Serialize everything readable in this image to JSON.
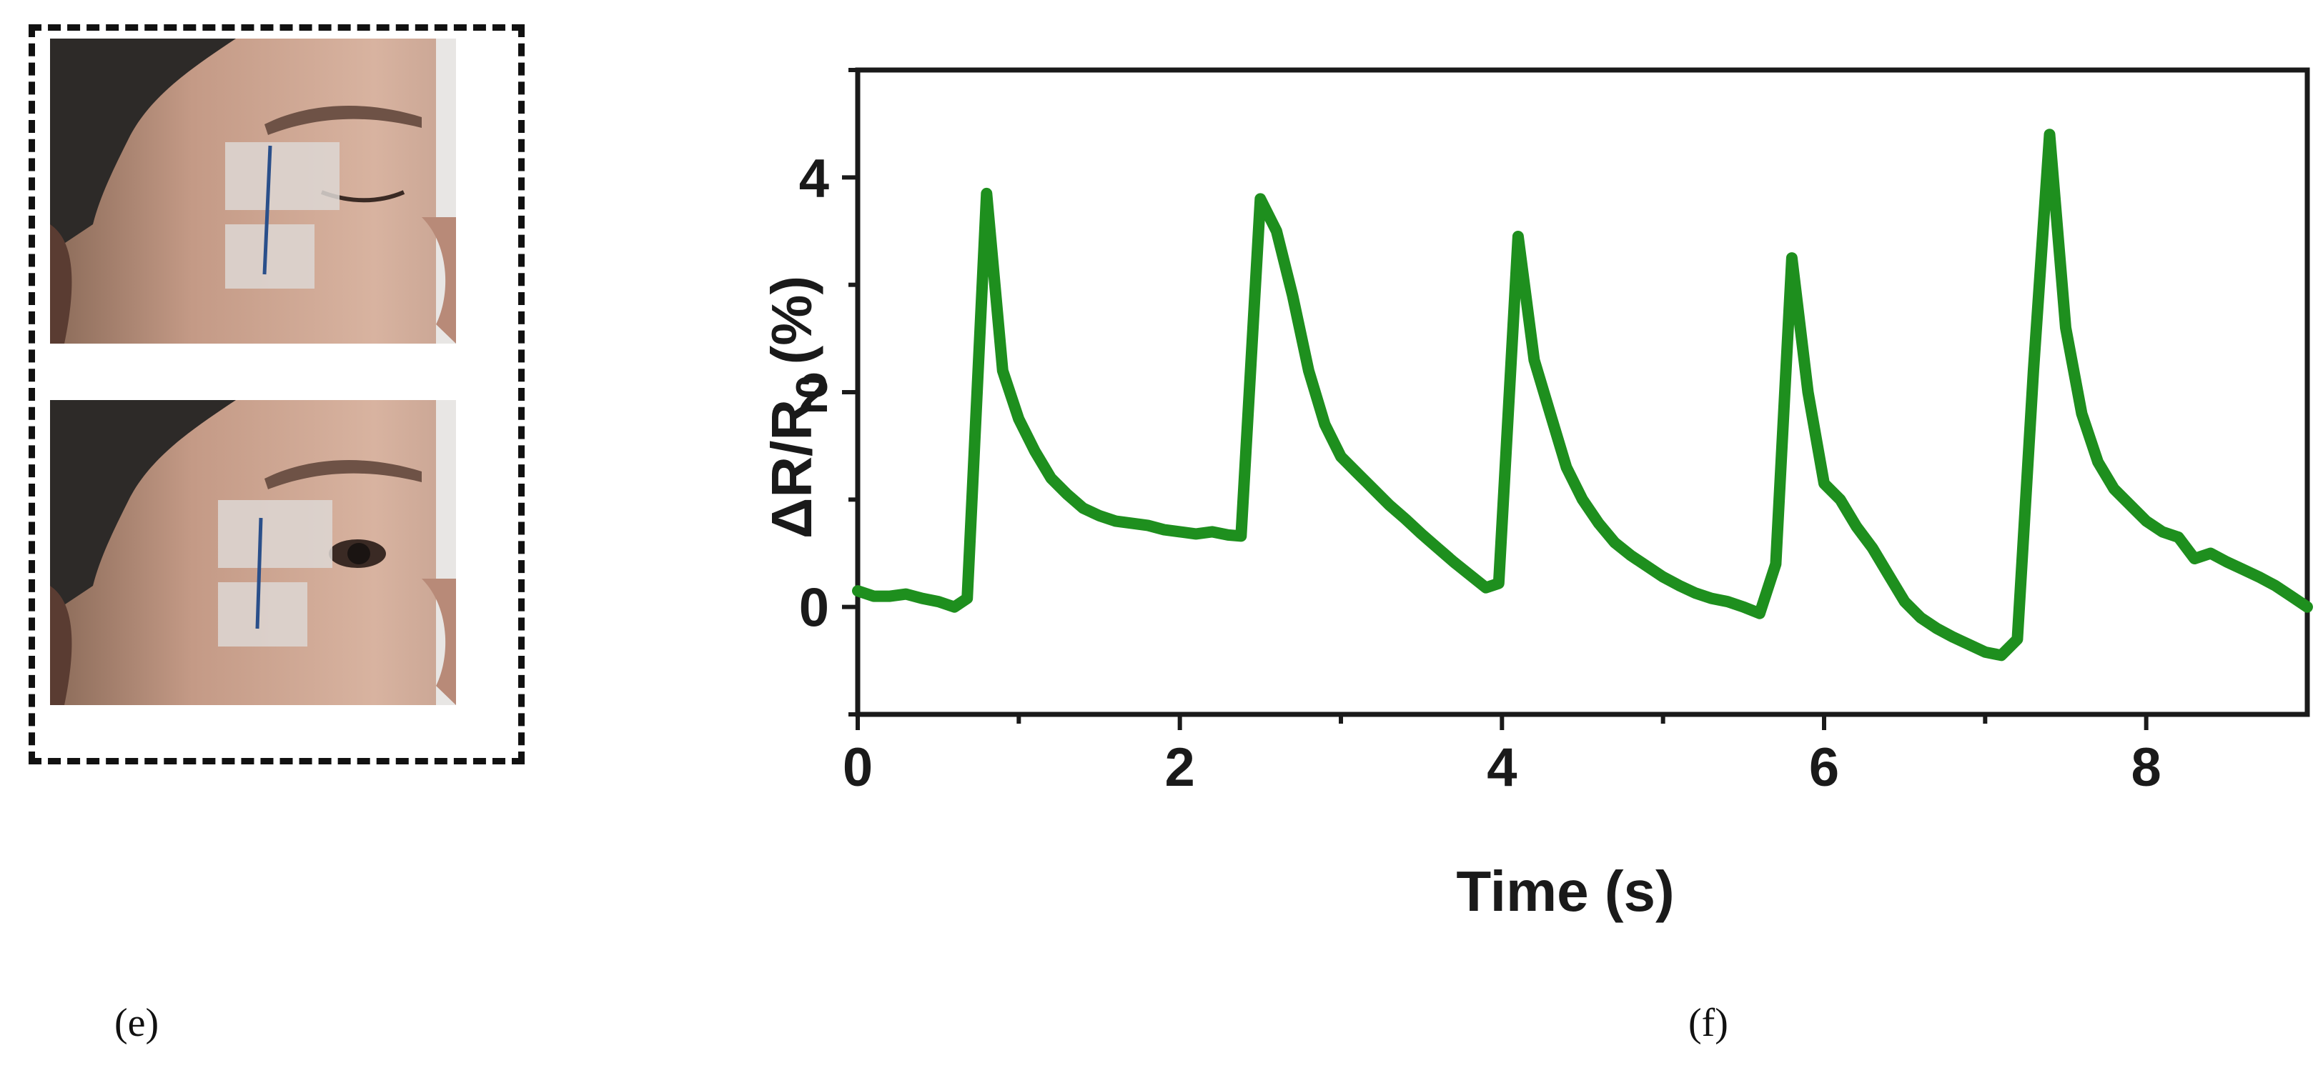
{
  "panels": {
    "left_label": "(e)",
    "right_label": "(f)"
  },
  "photos": [
    {
      "state": "eye-closed"
    },
    {
      "state": "eye-open"
    }
  ],
  "chart_data": {
    "type": "line",
    "title": "",
    "xlabel": "Time (s)",
    "ylabel": "ΔR/R0 (%)",
    "ylabel_main": "ΔR/R",
    "ylabel_sub": "0",
    "ylabel_unit": "(%)",
    "xlim": [
      0,
      9
    ],
    "ylim": [
      -1,
      5
    ],
    "xticks": [
      0,
      2,
      4,
      6,
      8
    ],
    "yticks": [
      0,
      2,
      4
    ],
    "xticks_minor": [
      1,
      3,
      5,
      7
    ],
    "yticks_minor": [
      -1,
      1,
      3,
      5
    ],
    "grid": false,
    "color": "#1e8f1e",
    "series": [
      {
        "x": [
          0,
          0.1,
          0.2,
          0.3,
          0.4,
          0.5,
          0.6,
          0.68,
          0.8,
          0.9,
          1.0,
          1.1,
          1.2,
          1.3,
          1.4,
          1.5,
          1.6,
          1.7,
          1.8,
          1.9,
          2.0,
          2.1,
          2.2,
          2.3,
          2.38,
          2.5,
          2.6,
          2.7,
          2.8,
          2.9,
          3.0,
          3.1,
          3.2,
          3.3,
          3.4,
          3.5,
          3.6,
          3.7,
          3.8,
          3.9,
          3.98,
          4.1,
          4.2,
          4.3,
          4.4,
          4.5,
          4.6,
          4.7,
          4.8,
          4.9,
          5.0,
          5.1,
          5.2,
          5.3,
          5.4,
          5.5,
          5.6,
          5.7,
          5.8,
          5.9,
          6.0,
          6.1,
          6.2,
          6.3,
          6.4,
          6.5,
          6.6,
          6.7,
          6.8,
          6.9,
          7.0,
          7.1,
          7.2,
          7.3,
          7.4,
          7.5,
          7.6,
          7.7,
          7.8,
          7.9,
          8.0,
          8.1,
          8.2,
          8.3,
          8.4,
          8.5,
          8.6,
          8.7,
          8.8,
          8.9,
          9.0
        ],
        "y": [
          0.15,
          0.1,
          0.1,
          0.12,
          0.08,
          0.05,
          0.0,
          0.08,
          3.85,
          2.2,
          1.75,
          1.45,
          1.2,
          1.05,
          0.92,
          0.85,
          0.8,
          0.78,
          0.76,
          0.72,
          0.7,
          0.68,
          0.7,
          0.67,
          0.66,
          3.8,
          3.5,
          2.9,
          2.2,
          1.7,
          1.4,
          1.25,
          1.1,
          0.95,
          0.82,
          0.68,
          0.55,
          0.42,
          0.3,
          0.18,
          0.22,
          3.45,
          2.3,
          1.8,
          1.3,
          1.0,
          0.78,
          0.6,
          0.48,
          0.38,
          0.28,
          0.2,
          0.13,
          0.08,
          0.05,
          0.0,
          -0.06,
          0.4,
          3.25,
          2.0,
          1.15,
          1.0,
          0.75,
          0.55,
          0.3,
          0.05,
          -0.1,
          -0.2,
          -0.28,
          -0.35,
          -0.42,
          -0.45,
          -0.3,
          2.2,
          4.4,
          2.6,
          1.8,
          1.35,
          1.1,
          0.95,
          0.8,
          0.7,
          0.65,
          0.45,
          0.5,
          0.42,
          0.35,
          0.28,
          0.2,
          0.1,
          0.0
        ]
      }
    ]
  }
}
